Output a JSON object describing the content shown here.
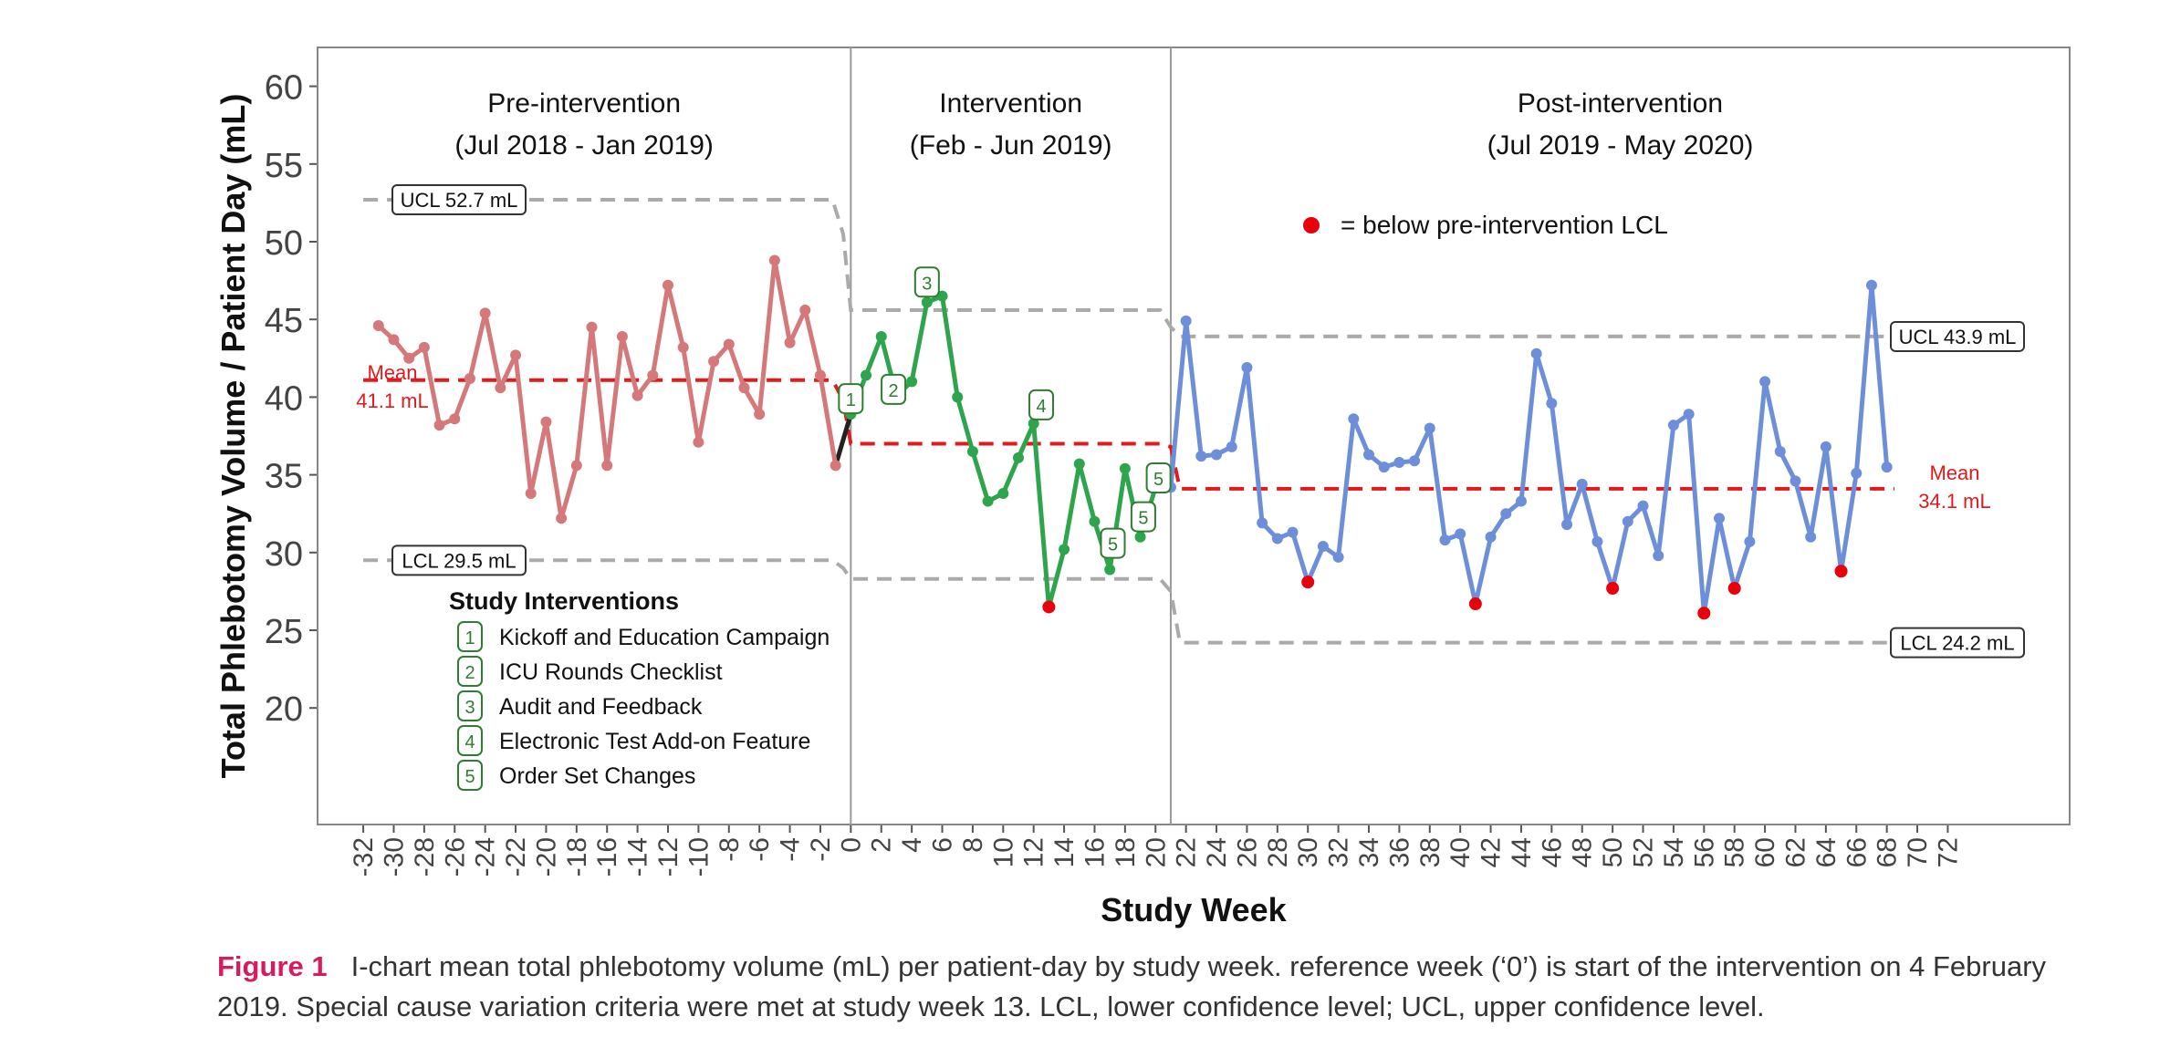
{
  "chart_data": {
    "type": "line",
    "xlabel": "Study Week",
    "ylabel": "Total Phlebotomy Volume / Patient Day (mL)",
    "xlim": [
      -35,
      80
    ],
    "ylim": [
      12.5,
      62.5
    ],
    "x_ticks": [
      -32,
      -30,
      -28,
      -26,
      -24,
      -22,
      -20,
      -18,
      -16,
      -14,
      -12,
      -10,
      -8,
      -6,
      -4,
      -2,
      0,
      2,
      4,
      6,
      8,
      10,
      12,
      14,
      16,
      18,
      20,
      22,
      24,
      26,
      28,
      30,
      32,
      34,
      36,
      38,
      40,
      42,
      44,
      46,
      48,
      50,
      52,
      54,
      56,
      58,
      60,
      62,
      64,
      66,
      68,
      70,
      72
    ],
    "y_ticks": [
      20,
      25,
      30,
      35,
      40,
      45,
      50,
      55,
      60
    ],
    "phases": [
      {
        "title": "Pre-intervention",
        "subtitle": "(Jul 2018 - Jan 2019)",
        "start": -35,
        "end": 0
      },
      {
        "title": "Intervention",
        "subtitle": "(Feb - Jun 2019)",
        "start": 0,
        "end": 21
      },
      {
        "title": "Post-intervention",
        "subtitle": "(Jul 2019 - May 2020)",
        "start": 21,
        "end": 80
      }
    ],
    "colors": {
      "pre": "#d4787a",
      "int": "#2ea54d",
      "post": "#6d8fd9",
      "mean": "#e31a1c",
      "limit": "#aaaaaa",
      "special": "#e8000b",
      "badge": "#2e7d32"
    },
    "series": [
      {
        "name": "Pre-intervention",
        "color_key": "pre",
        "points": [
          {
            "x": -31,
            "y": 44.6
          },
          {
            "x": -30,
            "y": 43.7
          },
          {
            "x": -29,
            "y": 42.5
          },
          {
            "x": -28,
            "y": 43.2
          },
          {
            "x": -27,
            "y": 38.2
          },
          {
            "x": -26,
            "y": 38.6
          },
          {
            "x": -25,
            "y": 41.2
          },
          {
            "x": -24,
            "y": 45.4
          },
          {
            "x": -23,
            "y": 40.6
          },
          {
            "x": -22,
            "y": 42.7
          },
          {
            "x": -21,
            "y": 33.8
          },
          {
            "x": -20,
            "y": 38.4
          },
          {
            "x": -19,
            "y": 32.2
          },
          {
            "x": -18,
            "y": 35.6
          },
          {
            "x": -17,
            "y": 44.5
          },
          {
            "x": -16,
            "y": 35.6
          },
          {
            "x": -15,
            "y": 43.9
          },
          {
            "x": -14,
            "y": 40.1
          },
          {
            "x": -13,
            "y": 41.4
          },
          {
            "x": -12,
            "y": 47.2
          },
          {
            "x": -11,
            "y": 43.2
          },
          {
            "x": -10,
            "y": 37.1
          },
          {
            "x": -9,
            "y": 42.3
          },
          {
            "x": -8,
            "y": 43.4
          },
          {
            "x": -7,
            "y": 40.6
          },
          {
            "x": -6,
            "y": 38.9
          },
          {
            "x": -5,
            "y": 48.8
          },
          {
            "x": -4,
            "y": 43.5
          },
          {
            "x": -3,
            "y": 45.6
          },
          {
            "x": -2,
            "y": 41.4
          },
          {
            "x": -1,
            "y": 35.6
          }
        ]
      },
      {
        "name": "Intervention",
        "color_key": "int",
        "points": [
          {
            "x": 0,
            "y": 38.9
          },
          {
            "x": 1,
            "y": 41.4
          },
          {
            "x": 2,
            "y": 43.9
          },
          {
            "x": 3,
            "y": 40.1
          },
          {
            "x": 4,
            "y": 41.0
          },
          {
            "x": 5,
            "y": 46.1
          },
          {
            "x": 6,
            "y": 46.5
          },
          {
            "x": 7,
            "y": 40.0
          },
          {
            "x": 8,
            "y": 36.5
          },
          {
            "x": 9,
            "y": 33.3
          },
          {
            "x": 10,
            "y": 33.8
          },
          {
            "x": 11,
            "y": 36.1
          },
          {
            "x": 12,
            "y": 38.3
          },
          {
            "x": 13,
            "y": 26.5
          },
          {
            "x": 14,
            "y": 30.2
          },
          {
            "x": 15,
            "y": 35.7
          },
          {
            "x": 16,
            "y": 32.0
          },
          {
            "x": 17,
            "y": 28.9
          },
          {
            "x": 18,
            "y": 35.4
          },
          {
            "x": 19,
            "y": 31.0
          },
          {
            "x": 20,
            "y": 34.2
          }
        ]
      },
      {
        "name": "Post-intervention",
        "color_key": "post",
        "points": [
          {
            "x": 21,
            "y": 34.2
          },
          {
            "x": 22,
            "y": 44.9
          },
          {
            "x": 23,
            "y": 36.2
          },
          {
            "x": 24,
            "y": 36.3
          },
          {
            "x": 25,
            "y": 36.8
          },
          {
            "x": 26,
            "y": 41.9
          },
          {
            "x": 27,
            "y": 31.9
          },
          {
            "x": 28,
            "y": 30.9
          },
          {
            "x": 29,
            "y": 31.3
          },
          {
            "x": 30,
            "y": 28.1
          },
          {
            "x": 31,
            "y": 30.4
          },
          {
            "x": 32,
            "y": 29.7
          },
          {
            "x": 33,
            "y": 38.6
          },
          {
            "x": 34,
            "y": 36.3
          },
          {
            "x": 35,
            "y": 35.5
          },
          {
            "x": 36,
            "y": 35.8
          },
          {
            "x": 37,
            "y": 35.9
          },
          {
            "x": 38,
            "y": 38.0
          },
          {
            "x": 39,
            "y": 30.8
          },
          {
            "x": 40,
            "y": 31.2
          },
          {
            "x": 41,
            "y": 26.7
          },
          {
            "x": 42,
            "y": 31.0
          },
          {
            "x": 43,
            "y": 32.5
          },
          {
            "x": 44,
            "y": 33.3
          },
          {
            "x": 45,
            "y": 42.8
          },
          {
            "x": 46,
            "y": 39.6
          },
          {
            "x": 47,
            "y": 31.8
          },
          {
            "x": 48,
            "y": 34.4
          },
          {
            "x": 49,
            "y": 30.7
          },
          {
            "x": 50,
            "y": 27.7
          },
          {
            "x": 51,
            "y": 32.0
          },
          {
            "x": 52,
            "y": 33.0
          },
          {
            "x": 53,
            "y": 29.8
          },
          {
            "x": 54,
            "y": 38.2
          },
          {
            "x": 55,
            "y": 38.9
          },
          {
            "x": 56,
            "y": 26.1
          },
          {
            "x": 57,
            "y": 32.2
          },
          {
            "x": 58,
            "y": 27.7
          },
          {
            "x": 59,
            "y": 30.7
          },
          {
            "x": 60,
            "y": 41.0
          },
          {
            "x": 61,
            "y": 36.5
          },
          {
            "x": 62,
            "y": 34.6
          },
          {
            "x": 63,
            "y": 31.0
          },
          {
            "x": 64,
            "y": 36.8
          },
          {
            "x": 65,
            "y": 28.8
          },
          {
            "x": 66,
            "y": 35.1
          },
          {
            "x": 67,
            "y": 47.2
          },
          {
            "x": 68,
            "y": 35.5
          }
        ]
      }
    ],
    "special_points": [
      {
        "x": 13,
        "y": 26.5
      },
      {
        "x": 30,
        "y": 28.1
      },
      {
        "x": 41,
        "y": 26.7
      },
      {
        "x": 50,
        "y": 27.7
      },
      {
        "x": 56,
        "y": 26.1
      },
      {
        "x": 58,
        "y": 27.7
      },
      {
        "x": 65,
        "y": 28.8
      }
    ],
    "control_lines": {
      "mean": [
        [
          -32,
          41.1
        ],
        [
          -1.2,
          41.1
        ],
        [
          -0.5,
          39.8
        ],
        [
          0,
          37.0
        ],
        [
          20.3,
          37.0
        ],
        [
          21,
          36.8
        ],
        [
          21.6,
          34.1
        ],
        [
          68.5,
          34.1
        ]
      ],
      "ucl": [
        [
          -32,
          52.7
        ],
        [
          -1.2,
          52.7
        ],
        [
          -0.5,
          50.5
        ],
        [
          0,
          45.6
        ],
        [
          20.3,
          45.6
        ],
        [
          21,
          44.5
        ],
        [
          21.6,
          43.9
        ],
        [
          68.5,
          43.9
        ]
      ],
      "lcl": [
        [
          -32,
          29.5
        ],
        [
          -1.2,
          29.5
        ],
        [
          -0.5,
          29.0
        ],
        [
          0,
          28.3
        ],
        [
          20.3,
          28.3
        ],
        [
          21,
          27.5
        ],
        [
          21.6,
          24.2
        ],
        [
          68.5,
          24.2
        ]
      ]
    },
    "line_labels": {
      "ucl_pre": "UCL 52.7 mL",
      "lcl_pre": "LCL 29.5 mL",
      "ucl_post": "UCL 43.9 mL",
      "lcl_post": "LCL 24.2 mL",
      "mean_pre": [
        "Mean",
        "41.1 mL"
      ],
      "mean_post": [
        "Mean",
        "34.1 mL"
      ]
    },
    "intervention_markers": [
      {
        "number": "1",
        "x": 0,
        "y": 39.9
      },
      {
        "number": "2",
        "x": 2.8,
        "y": 40.5
      },
      {
        "number": "3",
        "x": 5,
        "y": 47.4
      },
      {
        "number": "4",
        "x": 12.5,
        "y": 39.5
      },
      {
        "number": "5",
        "x": 17.2,
        "y": 30.6
      },
      {
        "number": "5",
        "x": 19.2,
        "y": 32.3
      },
      {
        "number": "5",
        "x": 20.2,
        "y": 34.8
      }
    ],
    "legend_special": "= below pre-intervention LCL",
    "legend": {
      "title": "Study Interventions",
      "items": [
        {
          "number": "1",
          "label": "Kickoff and Education Campaign"
        },
        {
          "number": "2",
          "label": "ICU Rounds Checklist"
        },
        {
          "number": "3",
          "label": "Audit and Feedback"
        },
        {
          "number": "4",
          "label": "Electronic Test Add-on Feature"
        },
        {
          "number": "5",
          "label": "Order Set Changes"
        }
      ]
    }
  },
  "caption": {
    "label": "Figure 1",
    "text": "I-chart mean total phlebotomy volume (mL) per patient-day by study week. reference week (‘0’) is start of the intervention on 4 February 2019. Special cause variation criteria were met at study week 13. LCL, lower confidence level; UCL, upper confidence level."
  }
}
